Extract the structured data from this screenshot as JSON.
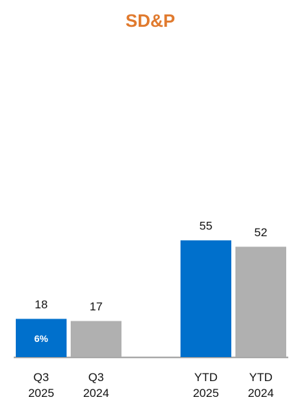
{
  "chart_data": {
    "type": "bar",
    "title": "SD&P",
    "categories": [
      "Q3 2025",
      "Q3 2024",
      "YTD 2025",
      "YTD 2024"
    ],
    "values": [
      18,
      17,
      55,
      52
    ],
    "colors": [
      "#0070cc",
      "#b0b0b0",
      "#0070cc",
      "#b0b0b0"
    ],
    "annotation": "6%"
  }
}
